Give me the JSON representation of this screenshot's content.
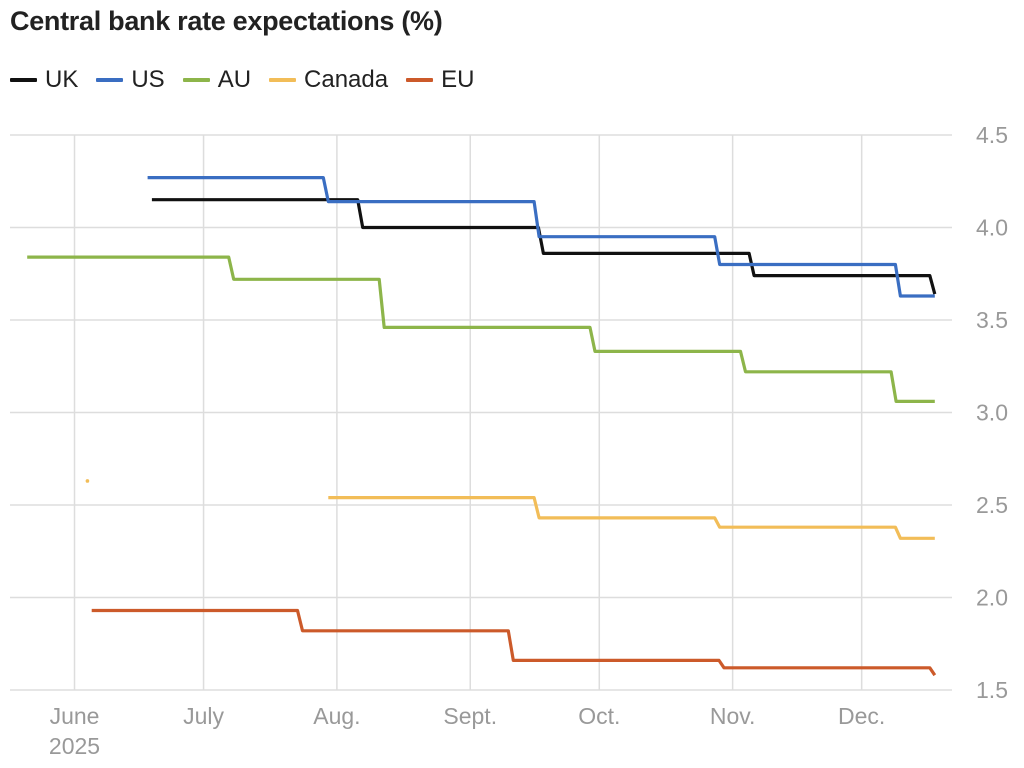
{
  "title": "Central bank rate expectations (%)",
  "colors": {
    "UK": "#111111",
    "US": "#3a6ec2",
    "AU": "#8db54a",
    "Canada": "#f2bd58",
    "EU": "#cc5a2a",
    "grid": "#dddddd",
    "tick": "#999999"
  },
  "chart_data": {
    "type": "line",
    "title": "Central bank rate expectations (%)",
    "xlabel": "",
    "ylabel": "",
    "xlim": [
      "2025-05-17",
      "2025-12-22"
    ],
    "ylim": [
      1.5,
      4.5
    ],
    "y_ticks": [
      1.5,
      2.0,
      2.5,
      3.0,
      3.5,
      4.0,
      4.5
    ],
    "y_tick_labels": [
      "1.5",
      "2.0",
      "2.5",
      "3.0",
      "3.5",
      "4.0",
      "4.5"
    ],
    "x_ticks": [
      {
        "date": "2025-06-01",
        "label": "June",
        "sublabel": "2025"
      },
      {
        "date": "2025-07-01",
        "label": "July",
        "sublabel": ""
      },
      {
        "date": "2025-08-01",
        "label": "Aug.",
        "sublabel": ""
      },
      {
        "date": "2025-09-01",
        "label": "Sept.",
        "sublabel": ""
      },
      {
        "date": "2025-10-01",
        "label": "Oct.",
        "sublabel": ""
      },
      {
        "date": "2025-11-01",
        "label": "Nov.",
        "sublabel": ""
      },
      {
        "date": "2025-12-01",
        "label": "Dec.",
        "sublabel": ""
      }
    ],
    "grid": true,
    "y_axis_side": "right",
    "legend_position": "top-left",
    "series": [
      {
        "name": "UK",
        "step": true,
        "points": [
          [
            "2025-06-19",
            4.15
          ],
          [
            "2025-08-07",
            4.0
          ],
          [
            "2025-09-18",
            3.86
          ],
          [
            "2025-11-06",
            3.74
          ],
          [
            "2025-12-18",
            3.64
          ]
        ]
      },
      {
        "name": "US",
        "step": true,
        "points": [
          [
            "2025-06-18",
            4.27
          ],
          [
            "2025-07-30",
            4.14
          ],
          [
            "2025-09-17",
            3.95
          ],
          [
            "2025-10-29",
            3.8
          ],
          [
            "2025-12-10",
            3.63
          ],
          [
            "2025-12-18",
            3.63
          ]
        ]
      },
      {
        "name": "AU",
        "step": true,
        "points": [
          [
            "2025-05-21",
            3.84
          ],
          [
            "2025-07-08",
            3.72
          ],
          [
            "2025-08-12",
            3.46
          ],
          [
            "2025-09-30",
            3.33
          ],
          [
            "2025-11-04",
            3.22
          ],
          [
            "2025-12-09",
            3.06
          ],
          [
            "2025-12-18",
            3.06
          ]
        ]
      },
      {
        "name": "Canada",
        "step": true,
        "points": [
          [
            "2025-07-30",
            2.54
          ],
          [
            "2025-09-17",
            2.43
          ],
          [
            "2025-10-29",
            2.38
          ],
          [
            "2025-12-10",
            2.32
          ],
          [
            "2025-12-18",
            2.32
          ]
        ],
        "isolated_points": [
          [
            "2025-06-04",
            2.63
          ]
        ]
      },
      {
        "name": "EU",
        "step": true,
        "points": [
          [
            "2025-06-05",
            1.93
          ],
          [
            "2025-07-24",
            1.82
          ],
          [
            "2025-09-11",
            1.66
          ],
          [
            "2025-10-30",
            1.62
          ],
          [
            "2025-12-18",
            1.58
          ]
        ]
      }
    ]
  }
}
